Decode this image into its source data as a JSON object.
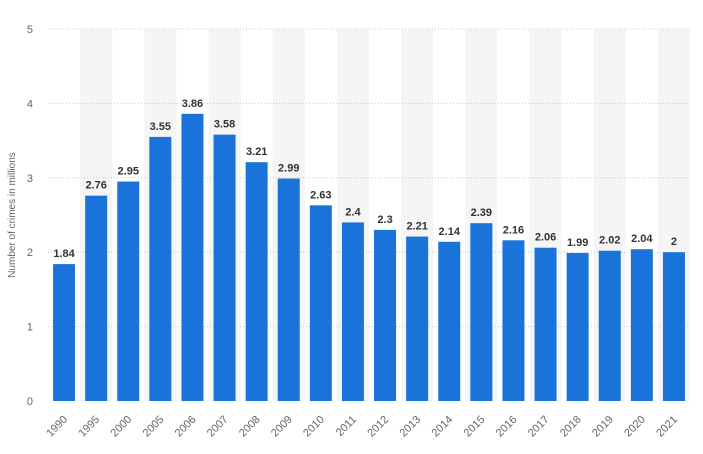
{
  "chart_data": {
    "type": "bar",
    "title": "",
    "xlabel": "",
    "ylabel": "Number of crimes in millions",
    "ylim": [
      0,
      5
    ],
    "yticks": [
      0,
      1,
      2,
      3,
      4,
      5
    ],
    "grid": true,
    "legend": "none",
    "categories": [
      "1990",
      "1995",
      "2000",
      "2005",
      "2006",
      "2007",
      "2008",
      "2009",
      "2010",
      "2011",
      "2012",
      "2013",
      "2014",
      "2015",
      "2016",
      "2017",
      "2018",
      "2019",
      "2020",
      "2021"
    ],
    "values": [
      1.84,
      2.76,
      2.95,
      3.55,
      3.86,
      3.58,
      3.21,
      2.99,
      2.63,
      2.4,
      2.3,
      2.21,
      2.14,
      2.39,
      2.16,
      2.06,
      1.99,
      2.02,
      2.04,
      2
    ],
    "value_labels": [
      "1.84",
      "2.76",
      "2.95",
      "3.55",
      "3.86",
      "3.58",
      "3.21",
      "2.99",
      "2.63",
      "2.4",
      "2.3",
      "2.21",
      "2.14",
      "2.39",
      "2.16",
      "2.06",
      "1.99",
      "2.02",
      "2.04",
      "2"
    ],
    "colors": {
      "bar": "#1a73d9",
      "band": "#f5f5f5",
      "grid": "#c8c8c8"
    }
  }
}
